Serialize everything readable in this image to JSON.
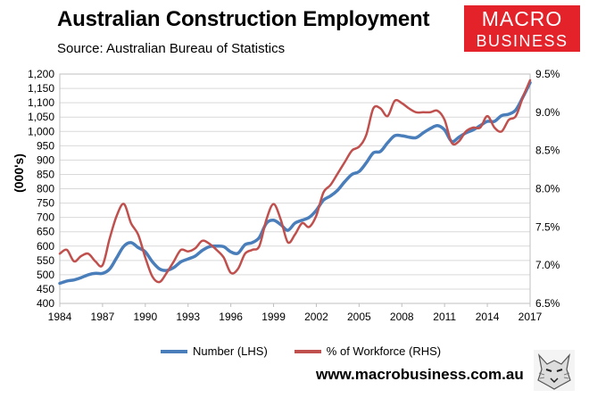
{
  "header": {
    "title": "Australian Construction Employment",
    "subtitle": "Source: Australian Bureau of Statistics"
  },
  "logo": {
    "line1": "MACRO",
    "line2": "BUSINESS",
    "icon": "wolf-emblem-icon"
  },
  "footer": {
    "url": "www.macrobusiness.com.au"
  },
  "colors": {
    "number": "#4a7ebb",
    "percent": "#c0504d",
    "logo_bg": "#e3222a"
  },
  "chart_data": {
    "type": "line",
    "title": "Australian Construction Employment",
    "ylabel": "(000's)",
    "ylabel_right": "",
    "xlim": [
      1984,
      2017
    ],
    "ylim_left": [
      400,
      1200
    ],
    "ylim_right": [
      6.5,
      9.5
    ],
    "x_ticks": [
      "1984",
      "1987",
      "1990",
      "1993",
      "1996",
      "1999",
      "2002",
      "2005",
      "2008",
      "2011",
      "2014",
      "2017"
    ],
    "y_ticks_left": [
      "400",
      "450",
      "500",
      "550",
      "600",
      "650",
      "700",
      "750",
      "800",
      "850",
      "900",
      "950",
      "1,000",
      "1,050",
      "1,100",
      "1,150",
      "1,200"
    ],
    "y_ticks_right": [
      "6.5%",
      "7.0%",
      "7.5%",
      "8.0%",
      "8.5%",
      "9.0%",
      "9.5%"
    ],
    "grid": true,
    "legend_position": "bottom",
    "series": [
      {
        "name": "Number (LHS)",
        "axis": "left",
        "x": [
          1984,
          1984.5,
          1985,
          1985.5,
          1986,
          1986.5,
          1987,
          1987.5,
          1988,
          1988.5,
          1989,
          1989.5,
          1990,
          1990.5,
          1991,
          1991.5,
          1992,
          1992.5,
          1993,
          1993.5,
          1994,
          1994.5,
          1995,
          1995.5,
          1996,
          1996.5,
          1997,
          1997.5,
          1998,
          1998.5,
          1999,
          1999.5,
          2000,
          2000.5,
          2001,
          2001.5,
          2002,
          2002.5,
          2003,
          2003.5,
          2004,
          2004.5,
          2005,
          2005.5,
          2006,
          2006.5,
          2007,
          2007.5,
          2008,
          2008.5,
          2009,
          2009.5,
          2010,
          2010.5,
          2011,
          2011.5,
          2012,
          2012.5,
          2013,
          2013.5,
          2014,
          2014.5,
          2015,
          2015.5,
          2016,
          2016.5,
          2017
        ],
        "values": [
          470,
          478,
          482,
          490,
          500,
          505,
          505,
          520,
          560,
          600,
          612,
          595,
          580,
          545,
          520,
          515,
          525,
          545,
          555,
          565,
          585,
          598,
          600,
          598,
          580,
          575,
          605,
          612,
          630,
          680,
          690,
          675,
          655,
          680,
          690,
          700,
          725,
          760,
          775,
          795,
          825,
          850,
          860,
          890,
          925,
          930,
          960,
          985,
          985,
          980,
          978,
          995,
          1010,
          1020,
          1005,
          965,
          980,
          995,
          1005,
          1020,
          1035,
          1035,
          1055,
          1060,
          1075,
          1120,
          1170
        ]
      },
      {
        "name": "% of Workforce (RHS)",
        "axis": "right",
        "x": [
          1984,
          1984.5,
          1985,
          1985.5,
          1986,
          1986.5,
          1987,
          1987.5,
          1988,
          1988.5,
          1989,
          1989.5,
          1990,
          1990.5,
          1991,
          1991.5,
          1992,
          1992.5,
          1993,
          1993.5,
          1994,
          1994.5,
          1995,
          1995.5,
          1996,
          1996.5,
          1997,
          1997.5,
          1998,
          1998.5,
          1999,
          1999.5,
          2000,
          2000.5,
          2001,
          2001.5,
          2002,
          2002.5,
          2003,
          2003.5,
          2004,
          2004.5,
          2005,
          2005.5,
          2006,
          2006.5,
          2007,
          2007.5,
          2008,
          2008.5,
          2009,
          2009.5,
          2010,
          2010.5,
          2011,
          2011.5,
          2012,
          2012.5,
          2013,
          2013.5,
          2014,
          2014.5,
          2015,
          2015.5,
          2016,
          2016.5,
          2017
        ],
        "values": [
          7.15,
          7.2,
          7.05,
          7.12,
          7.15,
          7.05,
          7.0,
          7.35,
          7.65,
          7.8,
          7.55,
          7.4,
          7.1,
          6.85,
          6.78,
          6.9,
          7.05,
          7.2,
          7.18,
          7.22,
          7.32,
          7.28,
          7.2,
          7.1,
          6.9,
          6.95,
          7.15,
          7.2,
          7.25,
          7.6,
          7.8,
          7.6,
          7.3,
          7.4,
          7.55,
          7.5,
          7.65,
          7.95,
          8.05,
          8.2,
          8.35,
          8.5,
          8.55,
          8.7,
          9.05,
          9.05,
          8.95,
          9.15,
          9.12,
          9.05,
          9.0,
          9.0,
          9.0,
          9.02,
          8.9,
          8.6,
          8.62,
          8.75,
          8.8,
          8.8,
          8.95,
          8.8,
          8.75,
          8.9,
          8.95,
          9.2,
          9.42
        ]
      }
    ]
  }
}
